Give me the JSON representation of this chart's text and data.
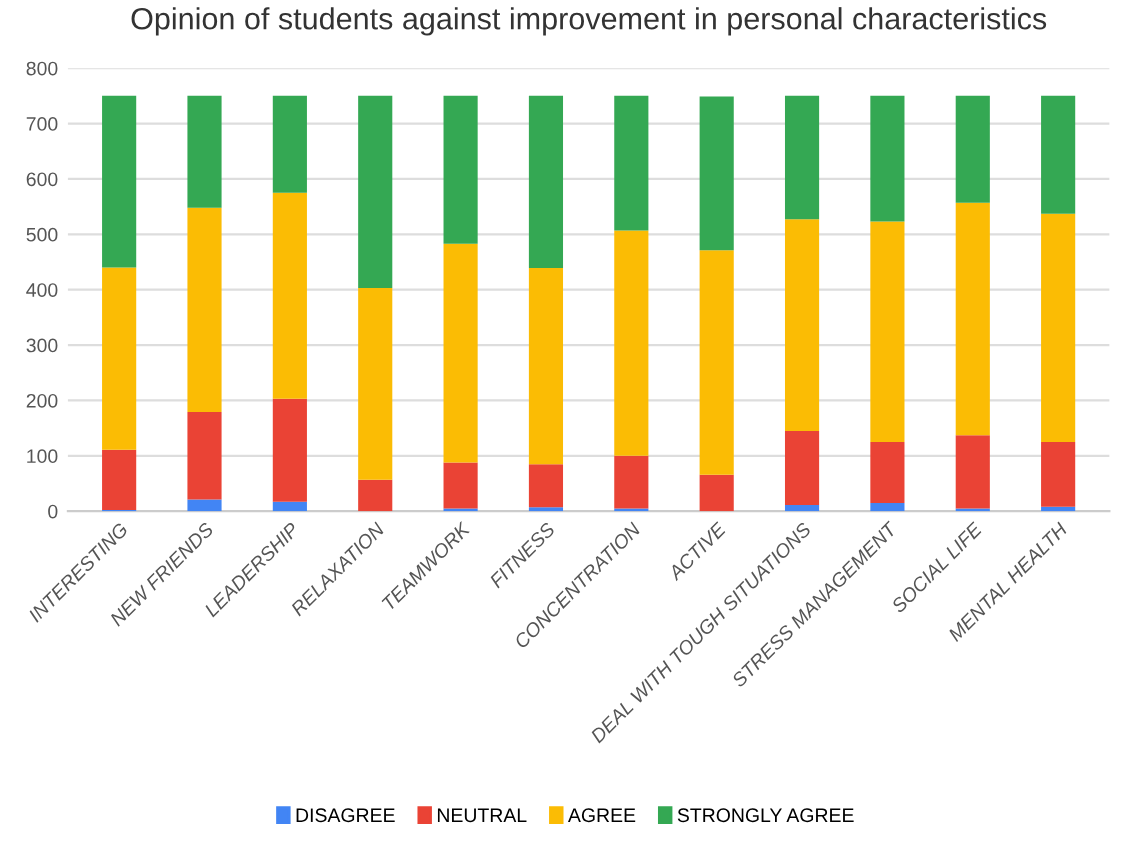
{
  "chart_data": {
    "type": "bar",
    "stacked": true,
    "title": "Opinion of students against improvement in personal characteristics",
    "categories": [
      "INTERESTING",
      "NEW FRIENDS",
      "LEADERSHIP",
      "RELAXATION",
      "TEAMWORK",
      "FITNESS",
      "CONCENTRATION",
      "ACTIVE",
      "DEAL WITH TOUGH SITUATIONS",
      "STRESS MANAGEMENT",
      "SOCIAL LIFE",
      "MENTAL HEALTH"
    ],
    "series": [
      {
        "name": "DISAGREE",
        "color": "#4285f4",
        "values": [
          2,
          21,
          17,
          0,
          5,
          7,
          5,
          null,
          11,
          15,
          5,
          8
        ]
      },
      {
        "name": "NEUTRAL",
        "color": "#ea4335",
        "values": [
          109,
          158,
          186,
          57,
          83,
          78,
          95,
          66,
          134,
          110,
          132,
          117
        ]
      },
      {
        "name": "AGREE",
        "color": "#fbbc04",
        "values": [
          329,
          369,
          372,
          346,
          395,
          354,
          407,
          405,
          382,
          398,
          420,
          412
        ]
      },
      {
        "name": "STRONGLY AGREE",
        "color": "#34a853",
        "values": [
          310,
          202,
          175,
          347,
          267,
          311,
          243,
          278,
          223,
          227,
          193,
          213
        ]
      }
    ],
    "ylim": [
      0,
      800
    ],
    "yticks": [
      0,
      100,
      200,
      300,
      400,
      500,
      600,
      700,
      800
    ],
    "grid": "y",
    "legend": "bottom"
  }
}
